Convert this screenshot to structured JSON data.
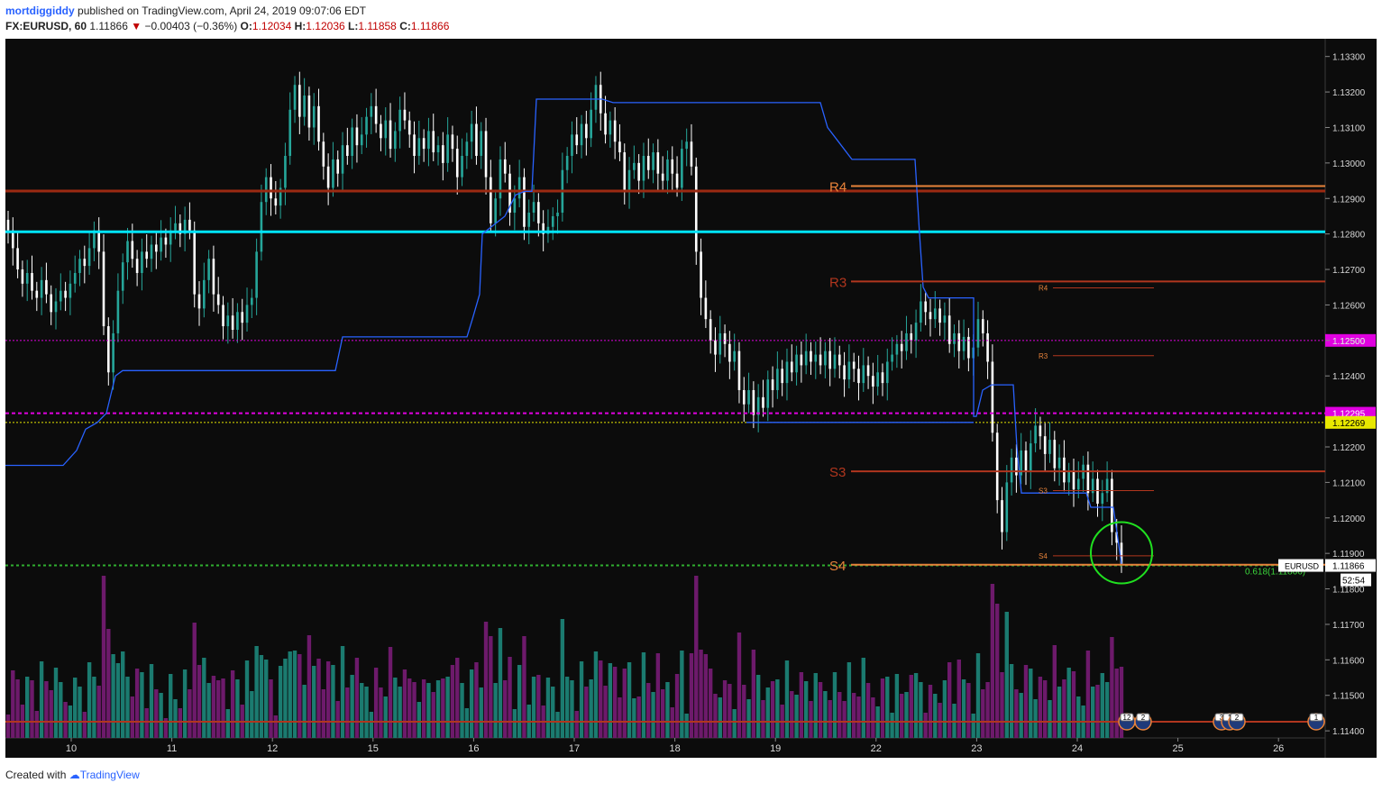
{
  "header": {
    "user": "mortdiggiddy",
    "published_text": "published on TradingView.com, April 24, 2019 09:07:06 EDT",
    "symbol_line": "FX:EURUSD, 60",
    "last": "1.11866",
    "down_arrow": "▼",
    "change": "−0.00403 (−0.36%)",
    "o_label": "O:",
    "o_val": "1.12034",
    "h_label": "H:",
    "h_val": "1.12036",
    "l_label": "L:",
    "l_val": "1.11858",
    "c_label": "C:",
    "c_val": "1.11866"
  },
  "footer": {
    "created_with": "Created with",
    "brand": "TradingView"
  },
  "colors": {
    "background": "#0c0c0c",
    "up_candle": "#26a69a",
    "down_candle": "#ffffff",
    "vol_up": "#1b7b70",
    "vol_down": "#6d1a6b",
    "cyan_line": "#00e5ff",
    "red_level": "#9c2a12",
    "magenta": "#e000e0",
    "yellow": "#e8e800",
    "green_dotted": "#2fae2f",
    "blue_line": "#2962ff",
    "orange": "#e8833a"
  },
  "chart_data": {
    "type": "candlestick",
    "symbol": "FX:EURUSD",
    "interval": "60",
    "ylim": [
      1.1138,
      1.1335
    ],
    "y_ticks": [
      "1.13300",
      "1.13200",
      "1.13100",
      "1.13000",
      "1.12900",
      "1.12800",
      "1.12700",
      "1.12600",
      "1.12500",
      "1.12400",
      "1.12200",
      "1.12100",
      "1.12000",
      "1.11900",
      "1.11800",
      "1.11700",
      "1.11600",
      "1.11500",
      "1.11400"
    ],
    "x_ticks": [
      "10",
      "11",
      "12",
      "15",
      "16",
      "17",
      "18",
      "19",
      "22",
      "23",
      "24",
      "25",
      "26"
    ],
    "price_badges": [
      {
        "label": "1.12500",
        "value": 1.125,
        "color": "#e000e0"
      },
      {
        "label": "1.12295",
        "value": 1.12295,
        "color": "#e000e0"
      },
      {
        "label": "1.12269",
        "value": 1.12269,
        "color": "#e8e800"
      },
      {
        "label": "1.11866",
        "value": 1.11866,
        "color": "#ffffff"
      }
    ],
    "countdown": "52:54",
    "symbol_tag": "EURUSD",
    "horizontal_lines": [
      {
        "name": "cyan-level",
        "value": 1.12806
      },
      {
        "name": "red-level",
        "value": 1.12921
      },
      {
        "name": "magenta-dotted-upper",
        "value": 1.125
      },
      {
        "name": "magenta-dotted-lower",
        "value": 1.12295
      },
      {
        "name": "yellow-dotted",
        "value": 1.12269
      },
      {
        "name": "green-dotted",
        "value": 1.11866
      }
    ],
    "pivot_levels": [
      {
        "label": "R4",
        "value": 1.12935,
        "color": "#e8833a"
      },
      {
        "label": "R3",
        "value": 1.12666,
        "color": "#b1361e"
      },
      {
        "label": "S3",
        "value": 1.12131,
        "color": "#b1361e"
      },
      {
        "label": "S4",
        "value": 1.11868,
        "color": "#e8833a"
      }
    ],
    "small_pivots": [
      {
        "label": "R4",
        "value": 1.12648
      },
      {
        "label": "R3",
        "value": 1.12457
      },
      {
        "label": "S3",
        "value": 1.12077
      },
      {
        "label": "S4",
        "value": 1.11893
      }
    ],
    "fib_label": "0.618(1.11866)",
    "event_badges": [
      "12",
      "2",
      "3",
      "1",
      "2",
      "1"
    ],
    "candles_close": [
      1.1281,
      1.1276,
      1.127,
      1.1266,
      1.1269,
      1.1264,
      1.1262,
      1.1267,
      1.1263,
      1.1258,
      1.1261,
      1.1264,
      1.1262,
      1.1266,
      1.1269,
      1.1273,
      1.1271,
      1.1276,
      1.1281,
      1.1275,
      1.1254,
      1.1241,
      1.1252,
      1.1264,
      1.1272,
      1.1278,
      1.1273,
      1.1269,
      1.1275,
      1.1273,
      1.1277,
      1.1275,
      1.1279,
      1.1277,
      1.1281,
      1.1283,
      1.128,
      1.1284,
      1.1281,
      1.1263,
      1.1259,
      1.1267,
      1.1273,
      1.1263,
      1.126,
      1.1254,
      1.1257,
      1.1253,
      1.1258,
      1.1255,
      1.126,
      1.1262,
      1.1275,
      1.1289,
      1.1296,
      1.129,
      1.1288,
      1.1293,
      1.1302,
      1.1315,
      1.1322,
      1.1313,
      1.1319,
      1.131,
      1.1316,
      1.1306,
      1.1299,
      1.1293,
      1.1301,
      1.1297,
      1.1305,
      1.1302,
      1.131,
      1.1305,
      1.1308,
      1.1313,
      1.1316,
      1.1311,
      1.1307,
      1.1312,
      1.1304,
      1.1309,
      1.1315,
      1.1312,
      1.1308,
      1.1302,
      1.1307,
      1.1304,
      1.1309,
      1.1303,
      1.1305,
      1.13,
      1.1308,
      1.1304,
      1.1296,
      1.1302,
      1.1306,
      1.1311,
      1.1302,
      1.1309,
      1.1296,
      1.1283,
      1.129,
      1.1301,
      1.1297,
      1.1286,
      1.129,
      1.1296,
      1.1282,
      1.1286,
      1.1289,
      1.1283,
      1.128,
      1.1282,
      1.1285,
      1.1286,
      1.1298,
      1.1302,
      1.1308,
      1.1305,
      1.1311,
      1.1307,
      1.1315,
      1.1322,
      1.1314,
      1.1308,
      1.1312,
      1.1306,
      1.1303,
      1.1292,
      1.1298,
      1.13,
      1.1295,
      1.1302,
      1.1298,
      1.1303,
      1.1297,
      1.1295,
      1.1301,
      1.1297,
      1.1293,
      1.1304,
      1.1306,
      1.1299,
      1.1275,
      1.1262,
      1.1256,
      1.125,
      1.1246,
      1.1252,
      1.1249,
      1.1244,
      1.1247,
      1.1236,
      1.1232,
      1.1236,
      1.1229,
      1.1234,
      1.1231,
      1.1239,
      1.1236,
      1.1242,
      1.1238,
      1.1244,
      1.1241,
      1.1246,
      1.1243,
      1.1247,
      1.1244,
      1.1246,
      1.1243,
      1.1247,
      1.1242,
      1.1246,
      1.1243,
      1.1239,
      1.1244,
      1.1242,
      1.1238,
      1.1243,
      1.124,
      1.1237,
      1.1241,
      1.1238,
      1.1244,
      1.1246,
      1.1249,
      1.1247,
      1.1252,
      1.125,
      1.1255,
      1.1261,
      1.1258,
      1.1256,
      1.1259,
      1.1255,
      1.1257,
      1.1249,
      1.1252,
      1.1247,
      1.1251,
      1.1245,
      1.1248,
      1.1256,
      1.1252,
      1.1244,
      1.1224,
      1.1205,
      1.1196,
      1.121,
      1.1217,
      1.1212,
      1.1219,
      1.1213,
      1.1221,
      1.1226,
      1.1223,
      1.1218,
      1.1222,
      1.1214,
      1.1217,
      1.121,
      1.1213,
      1.1208,
      1.1211,
      1.1215,
      1.1207,
      1.1211,
      1.1204,
      1.1207,
      1.1211,
      1.1196,
      1.1193,
      1.1187
    ]
  }
}
